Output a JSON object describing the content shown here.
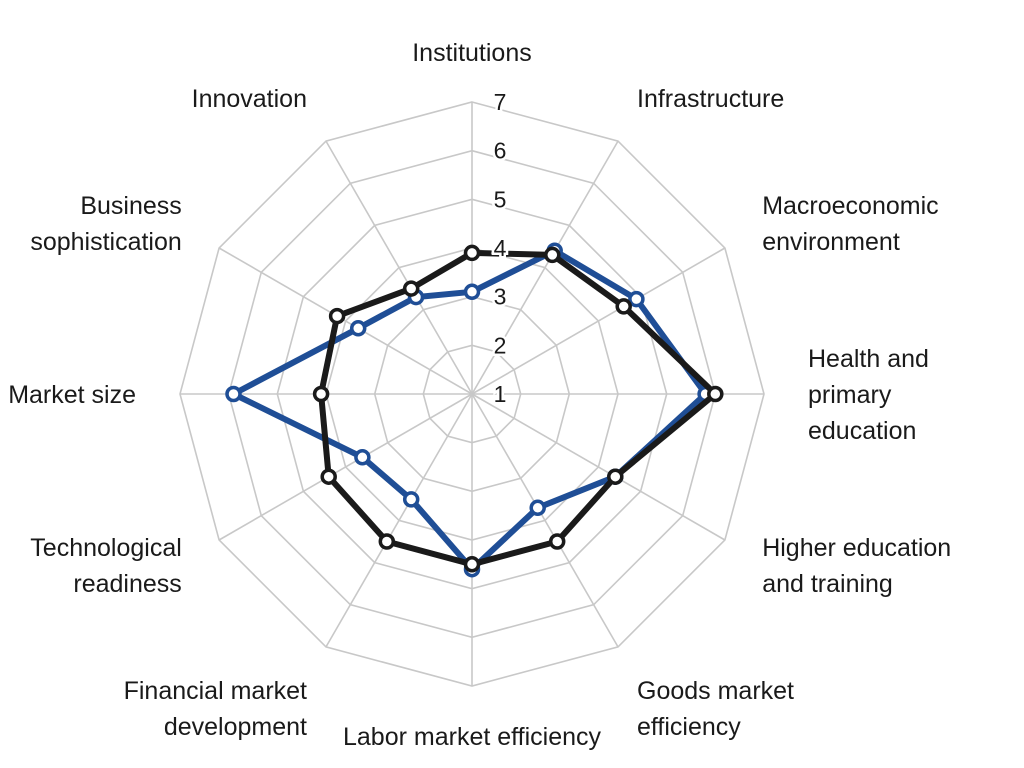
{
  "chart_data": {
    "type": "radar",
    "axis_range": [
      1,
      7
    ],
    "ticks": [
      "1",
      "2",
      "3",
      "4",
      "5",
      "6",
      "7"
    ],
    "axes": [
      [
        "Institutions"
      ],
      [
        "Infrastructure"
      ],
      [
        "Macroeconomic",
        "environment"
      ],
      [
        "Health and",
        "primary",
        "education"
      ],
      [
        "Higher education",
        "and training"
      ],
      [
        "Goods market",
        "efficiency"
      ],
      [
        "Labor market efficiency"
      ],
      [
        "Financial market",
        "development"
      ],
      [
        "Technological",
        "readiness"
      ],
      [
        "Market size"
      ],
      [
        "Business",
        "sophistication"
      ],
      [
        "Innovation"
      ]
    ],
    "series": [
      {
        "name": "blue",
        "color": "#1f4e96",
        "values": [
          3.1,
          4.4,
          4.9,
          5.8,
          4.4,
          3.7,
          4.6,
          3.5,
          3.6,
          5.9,
          3.7,
          3.3
        ]
      },
      {
        "name": "black",
        "color": "#1a1a1a",
        "values": [
          3.9,
          4.3,
          4.6,
          6.0,
          4.4,
          4.5,
          4.5,
          4.5,
          4.4,
          4.1,
          4.2,
          3.5
        ]
      }
    ]
  }
}
